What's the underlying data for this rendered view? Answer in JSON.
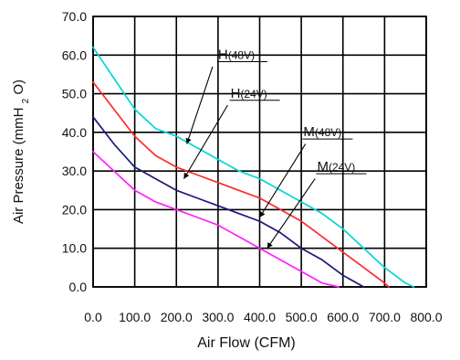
{
  "chart_data": {
    "type": "line",
    "xlabel": "Air Flow (CFM)",
    "ylabel": {
      "main": "Air Pressure (mmH",
      "sub": "2",
      "end": "O)"
    },
    "xlim": [
      0,
      800
    ],
    "ylim": [
      0,
      70
    ],
    "x_ticks": [
      0,
      100,
      200,
      300,
      400,
      500,
      600,
      700,
      800
    ],
    "y_ticks": [
      0,
      10,
      20,
      30,
      40,
      50,
      60,
      70
    ],
    "x_tick_labels": [
      "0.0",
      "100.0",
      "200.0",
      "300.0",
      "400.0",
      "500.0",
      "600.0",
      "700.0",
      "800.0"
    ],
    "y_tick_labels": [
      "0.0",
      "10.0",
      "20.0",
      "30.0",
      "40.0",
      "50.0",
      "60.0",
      "70.0"
    ],
    "grid": true,
    "series": [
      {
        "name": "H(48V)",
        "label_main": "H",
        "label_suffix": "(48V)",
        "color": "#00d6d6",
        "points": [
          [
            0,
            62
          ],
          [
            50,
            54
          ],
          [
            100,
            46
          ],
          [
            150,
            41
          ],
          [
            200,
            39
          ],
          [
            250,
            36
          ],
          [
            300,
            33
          ],
          [
            350,
            30
          ],
          [
            400,
            28
          ],
          [
            450,
            25
          ],
          [
            500,
            22
          ],
          [
            550,
            19
          ],
          [
            600,
            15
          ],
          [
            650,
            10
          ],
          [
            700,
            5
          ],
          [
            750,
            1
          ],
          [
            770,
            0
          ]
        ]
      },
      {
        "name": "H(24V)",
        "label_main": "H",
        "label_suffix": "(24V)",
        "color": "#ff2a2a",
        "points": [
          [
            0,
            53
          ],
          [
            50,
            46
          ],
          [
            100,
            39
          ],
          [
            150,
            34
          ],
          [
            200,
            31
          ],
          [
            250,
            29
          ],
          [
            300,
            27
          ],
          [
            350,
            25
          ],
          [
            400,
            23
          ],
          [
            450,
            20
          ],
          [
            500,
            17
          ],
          [
            550,
            13
          ],
          [
            600,
            9
          ],
          [
            650,
            5
          ],
          [
            700,
            1
          ],
          [
            710,
            0
          ]
        ]
      },
      {
        "name": "M(48V)",
        "label_main": "M",
        "label_suffix": "(48V)",
        "color": "#1a1a7a",
        "points": [
          [
            0,
            44
          ],
          [
            50,
            37
          ],
          [
            100,
            31
          ],
          [
            150,
            28
          ],
          [
            200,
            25
          ],
          [
            250,
            23
          ],
          [
            300,
            21
          ],
          [
            350,
            19
          ],
          [
            400,
            17
          ],
          [
            450,
            14
          ],
          [
            500,
            10
          ],
          [
            550,
            7
          ],
          [
            600,
            3
          ],
          [
            650,
            0
          ]
        ]
      },
      {
        "name": "M(24V)",
        "label_main": "M",
        "label_suffix": "(24V)",
        "color": "#ff20ff",
        "points": [
          [
            0,
            35
          ],
          [
            50,
            30
          ],
          [
            100,
            25
          ],
          [
            150,
            22
          ],
          [
            200,
            20
          ],
          [
            250,
            18
          ],
          [
            300,
            16
          ],
          [
            350,
            13
          ],
          [
            400,
            10
          ],
          [
            450,
            7
          ],
          [
            500,
            4
          ],
          [
            550,
            1
          ],
          [
            590,
            0
          ]
        ]
      }
    ],
    "annotations": [
      {
        "series": "H(48V)",
        "text_main": "H",
        "text_suffix": "(48V)",
        "text_data": [
          300,
          59
        ],
        "line_start": [
          287,
          57
        ],
        "line_end": [
          225,
          37
        ]
      },
      {
        "series": "H(24V)",
        "text_main": "H",
        "text_suffix": "(24V)",
        "text_data": [
          330,
          49
        ],
        "line_start": [
          323,
          47
        ],
        "line_end": [
          218,
          28
        ]
      },
      {
        "series": "M(48V)",
        "text_main": "M",
        "text_suffix": "(48V)",
        "text_data": [
          505,
          39
        ],
        "line_start": [
          510,
          37
        ],
        "line_end": [
          400,
          18
        ]
      },
      {
        "series": "M(24V)",
        "text_main": "M",
        "text_suffix": "(24V)",
        "text_data": [
          538,
          30
        ],
        "line_start": [
          533,
          28
        ],
        "line_end": [
          418,
          10
        ]
      }
    ]
  }
}
